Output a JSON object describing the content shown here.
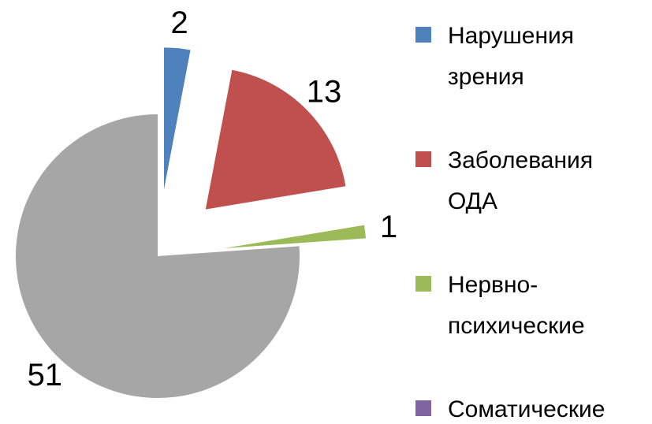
{
  "chart_data": {
    "type": "pie",
    "categories": [
      "Нарушения зрения",
      "Заболевания ОДА",
      "Нервно-психические",
      "Соматические",
      null
    ],
    "values": [
      2,
      13,
      1,
      0,
      51
    ],
    "colors": [
      "#4f81bd",
      "#c0504d",
      "#9bbb59",
      "#8064a2",
      "#a6a6a6"
    ],
    "exploded": [
      true,
      true,
      true,
      true,
      false
    ],
    "legend": "right"
  }
}
